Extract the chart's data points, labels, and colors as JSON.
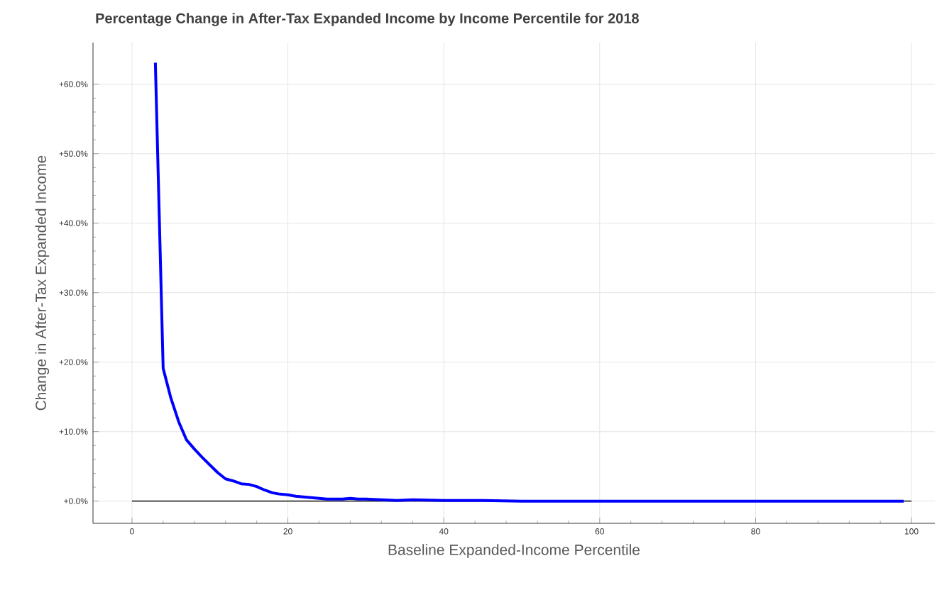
{
  "chart_data": {
    "type": "line",
    "title": "Percentage Change in After-Tax Expanded Income by Income Percentile for 2018",
    "xlabel": "Baseline Expanded-Income Percentile",
    "ylabel": "Change in After-Tax Expanded Income",
    "series": [
      {
        "color": "#0000ff",
        "x": [
          3,
          4,
          5,
          6,
          7,
          8,
          9,
          10,
          11,
          12,
          13,
          14,
          15,
          16,
          17,
          18,
          19,
          20,
          21,
          22,
          23,
          24,
          25,
          26,
          27,
          28,
          29,
          30,
          32,
          34,
          36,
          40,
          45,
          50,
          60,
          70,
          80,
          90,
          99
        ],
        "values": [
          63.1,
          19.1,
          14.8,
          11.4,
          8.8,
          7.5,
          6.3,
          5.2,
          4.1,
          3.2,
          2.9,
          2.5,
          2.4,
          2.1,
          1.6,
          1.2,
          1.0,
          0.9,
          0.7,
          0.6,
          0.5,
          0.4,
          0.3,
          0.3,
          0.3,
          0.4,
          0.3,
          0.3,
          0.2,
          0.1,
          0.2,
          0.1,
          0.1,
          0,
          0,
          0,
          0,
          0,
          0
        ]
      }
    ],
    "xlim": [
      -5,
      103
    ],
    "ylim": [
      -3.2,
      66
    ],
    "xticks": [
      0,
      20,
      40,
      60,
      80,
      100
    ],
    "yticks": [
      {
        "value": 0,
        "label": "+0.0%"
      },
      {
        "value": 10,
        "label": "+10.0%"
      },
      {
        "value": 20,
        "label": "+20.0%"
      },
      {
        "value": 30,
        "label": "+30.0%"
      },
      {
        "value": 40,
        "label": "+40.0%"
      },
      {
        "value": 50,
        "label": "+50.0%"
      },
      {
        "value": 60,
        "label": "+60.0%"
      }
    ],
    "ref_lines": [
      {
        "axis": "y",
        "value": 0,
        "color": "#333333"
      }
    ],
    "grid": true,
    "marker": "none",
    "line_style": "solid"
  }
}
